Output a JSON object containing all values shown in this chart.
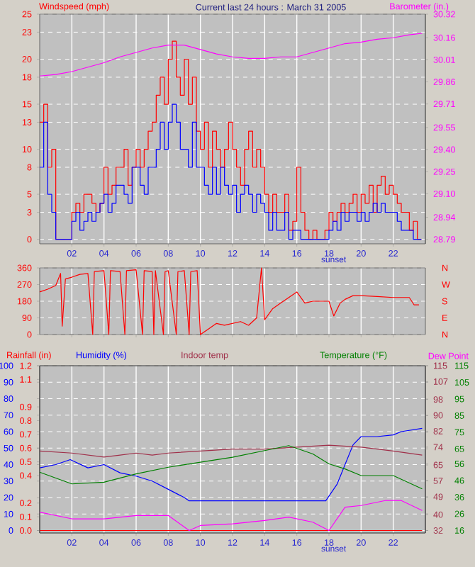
{
  "chart_data": [
    {
      "type": "line",
      "title": "Current last 24 hours : March 31 2005",
      "ylabel": "Windspeed (mph)",
      "y2label": "Barometer (in.)",
      "grid": true,
      "xlim": [
        0,
        24
      ],
      "xticks": [
        {
          "value": 2,
          "label": "02"
        },
        {
          "value": 4,
          "label": "04"
        },
        {
          "value": 6,
          "label": "06"
        },
        {
          "value": 8,
          "label": "08"
        },
        {
          "value": 10,
          "label": "10"
        },
        {
          "value": 12,
          "label": "12"
        },
        {
          "value": 14,
          "label": "14"
        },
        {
          "value": 16,
          "label": "16"
        },
        {
          "value": 18,
          "label": "18"
        },
        {
          "value": 20,
          "label": "20"
        },
        {
          "value": 22,
          "label": "22"
        }
      ],
      "ylim": [
        -0.5,
        25
      ],
      "yticks": [
        0,
        3,
        5,
        8,
        10,
        13,
        15,
        18,
        20,
        23,
        25
      ],
      "y2lim": [
        28.76,
        30.32
      ],
      "y2ticks": [
        28.79,
        28.94,
        {
          "value": 29.1,
          "label": "29.10"
        },
        29.25,
        {
          "value": 29.4,
          "label": "29.40"
        },
        29.55,
        29.71,
        29.86,
        30.01,
        30.16,
        30.32
      ],
      "x": [
        0,
        0.25,
        0.5,
        0.75,
        1,
        1.25,
        1.5,
        1.75,
        2,
        2.25,
        2.5,
        2.75,
        3,
        3.25,
        3.5,
        3.75,
        4,
        4.25,
        4.5,
        4.75,
        5,
        5.25,
        5.5,
        5.75,
        6,
        6.25,
        6.5,
        6.75,
        7,
        7.25,
        7.5,
        7.75,
        8,
        8.25,
        8.5,
        8.75,
        9,
        9.25,
        9.5,
        9.75,
        10,
        10.25,
        10.5,
        10.75,
        11,
        11.25,
        11.5,
        11.75,
        12,
        12.25,
        12.5,
        12.75,
        13,
        13.25,
        13.5,
        13.75,
        14,
        14.25,
        14.5,
        14.75,
        15,
        15.25,
        15.5,
        15.75,
        16,
        16.25,
        16.5,
        16.75,
        17,
        17.25,
        17.5,
        17.75,
        18,
        18.25,
        18.5,
        18.75,
        19,
        19.25,
        19.5,
        19.75,
        20,
        20.25,
        20.5,
        20.75,
        21,
        21.25,
        21.5,
        21.75,
        22,
        22.25,
        22.5,
        22.75,
        23,
        23.25,
        23.5,
        23.75
      ],
      "series": [
        {
          "type": "step",
          "color": "#ff0000",
          "values": [
            13,
            15,
            8,
            10,
            0,
            0,
            0,
            0,
            3,
            4,
            3,
            5,
            5,
            4,
            3,
            4,
            8,
            5,
            6,
            8,
            8,
            10,
            6,
            8,
            10,
            8,
            10,
            12,
            13,
            16,
            18,
            15,
            20,
            22,
            18,
            16,
            20,
            15,
            18,
            12,
            10,
            13,
            8,
            12,
            10,
            8,
            10,
            13,
            10,
            8,
            6,
            10,
            12,
            8,
            10,
            8,
            5,
            3,
            5,
            3,
            3,
            5,
            1,
            2,
            8,
            3,
            1,
            0,
            1,
            0,
            0,
            1,
            3,
            2,
            3,
            4,
            3,
            4,
            5,
            3,
            5,
            4,
            6,
            3,
            6,
            7,
            5,
            6,
            5,
            4,
            3,
            3,
            1,
            2,
            0,
            0
          ]
        },
        {
          "type": "step",
          "color": "#0000ff",
          "values": [
            8,
            13,
            5,
            3,
            0,
            0,
            0,
            0,
            2,
            3,
            1,
            2,
            3,
            2,
            3,
            4,
            5,
            3,
            4,
            6,
            6,
            5,
            4,
            8,
            8,
            6,
            5,
            8,
            8,
            10,
            13,
            10,
            13,
            15,
            13,
            10,
            10,
            8,
            13,
            8,
            8,
            6,
            5,
            8,
            5,
            8,
            6,
            5,
            6,
            3,
            5,
            6,
            5,
            3,
            5,
            4,
            3,
            1,
            3,
            1,
            1,
            3,
            0,
            1,
            1,
            0,
            0,
            0,
            0,
            0,
            0,
            0,
            1,
            2,
            1,
            3,
            2,
            3,
            3,
            2,
            3,
            2,
            3,
            4,
            3,
            4,
            3,
            3,
            3,
            2,
            1,
            1,
            1,
            0,
            0,
            0
          ]
        },
        {
          "type": "line",
          "axis": "y2",
          "color": "#ff00ff",
          "x": [
            0,
            1,
            2,
            3,
            4,
            5,
            6,
            7,
            8,
            9,
            10,
            11,
            12,
            13,
            14,
            15,
            16,
            17,
            18,
            19,
            20,
            21,
            22,
            23,
            23.8
          ],
          "values": [
            29.9,
            29.91,
            29.93,
            29.96,
            29.99,
            30.03,
            30.06,
            30.09,
            30.11,
            30.11,
            30.08,
            30.05,
            30.03,
            30.02,
            30.02,
            30.03,
            30.03,
            30.06,
            30.09,
            30.12,
            30.13,
            30.15,
            30.16,
            30.18,
            30.19
          ]
        }
      ],
      "annotations": [
        "sunset"
      ]
    },
    {
      "type": "line",
      "grid": true,
      "tick_labels": "y",
      "xlim": [
        0,
        24
      ],
      "xticks": [
        {
          "value": 2,
          "label": null
        },
        {
          "value": 4,
          "label": null
        },
        {
          "value": 6,
          "label": null
        },
        {
          "value": 8,
          "label": null
        },
        {
          "value": 10,
          "label": null
        },
        {
          "value": 12,
          "label": null
        },
        {
          "value": 14,
          "label": null
        },
        {
          "value": 16,
          "label": null
        },
        {
          "value": 18,
          "label": null
        },
        {
          "value": 20,
          "label": null
        },
        {
          "value": 22,
          "label": null
        }
      ],
      "ylim": [
        0,
        360
      ],
      "yticks": [
        0,
        90,
        180,
        270,
        360
      ],
      "y2_categories": [
        "N",
        "W",
        "S",
        "E",
        "N"
      ],
      "series": [
        {
          "color": "#ff0000",
          "x": [
            0,
            0.5,
            1,
            1.3,
            1.4,
            1.6,
            2,
            2.5,
            3,
            3.3,
            3.4,
            4,
            4.3,
            4.4,
            5,
            5.3,
            5.4,
            6,
            6.4,
            6.5,
            7,
            7.1,
            7.2,
            7.7,
            7.8,
            8,
            8.5,
            8.6,
            9,
            9.3,
            9.4,
            9.8,
            10,
            10.5,
            11,
            11.5,
            12,
            12.5,
            13,
            13.5,
            13.8,
            14,
            14.5,
            15,
            15.5,
            16,
            16.5,
            17,
            18,
            18.3,
            18.7,
            19,
            19.5,
            20,
            21,
            22,
            23,
            23.3,
            23.6
          ],
          "values": [
            230,
            245,
            265,
            330,
            45,
            300,
            310,
            325,
            330,
            0,
            340,
            345,
            0,
            345,
            340,
            0,
            345,
            350,
            0,
            345,
            340,
            0,
            345,
            0,
            340,
            345,
            0,
            340,
            345,
            0,
            340,
            345,
            0,
            30,
            60,
            50,
            60,
            70,
            50,
            90,
            360,
            80,
            140,
            170,
            200,
            230,
            170,
            180,
            180,
            100,
            170,
            190,
            210,
            210,
            205,
            200,
            200,
            160,
            160
          ]
        }
      ]
    },
    {
      "type": "line",
      "grid": true,
      "xlim": [
        0,
        24
      ],
      "xticks": [
        {
          "value": 2,
          "label": "02"
        },
        {
          "value": 4,
          "label": "04"
        },
        {
          "value": 6,
          "label": "06"
        },
        {
          "value": 8,
          "label": "08"
        },
        {
          "value": 10,
          "label": "10"
        },
        {
          "value": 12,
          "label": "12"
        },
        {
          "value": 14,
          "label": "14"
        },
        {
          "value": 16,
          "label": "16"
        },
        {
          "value": 18,
          "label": "18"
        },
        {
          "value": 20,
          "label": "20"
        },
        {
          "value": 22,
          "label": "22"
        }
      ],
      "ylim": [
        -1.5,
        100
      ],
      "yticks": [
        0,
        10,
        20,
        30,
        40,
        50,
        60,
        70,
        80,
        90,
        100
      ],
      "y2lim": [
        -0.018,
        1.2
      ],
      "y2ticks": [
        {
          "value": 0,
          "label": "0.0"
        },
        0.1,
        0.2,
        0.4,
        0.5,
        0.6,
        0.7,
        0.8,
        0.9,
        1.1,
        1.2
      ],
      "series": [
        {
          "name": "Rainfall (in)",
          "axis": "y2",
          "color": "#ff0000",
          "x": [
            0,
            23.8
          ],
          "values": [
            0,
            0
          ]
        },
        {
          "name": "Humidity (%)",
          "color": "#0000ff",
          "x": [
            0,
            1,
            1.9,
            3,
            4,
            5,
            6,
            7,
            8,
            9,
            9.3,
            17.8,
            18.5,
            19,
            19.5,
            20,
            21,
            22,
            22.5,
            23.8
          ],
          "values": [
            38,
            40,
            43,
            38,
            40,
            35,
            33,
            30,
            25,
            20,
            18,
            18,
            28,
            40,
            52,
            57,
            57,
            58,
            60,
            62
          ]
        }
      ],
      "annotations": [
        "sunset"
      ]
    },
    {
      "type": "line",
      "tick_labels": "y",
      "xlim": [
        0,
        24
      ],
      "ylim": [
        30.75,
        115
      ],
      "yticks": [
        32,
        40,
        49,
        57,
        65,
        74,
        82,
        90,
        98,
        107,
        115
      ],
      "y2lim": [
        14.5,
        115
      ],
      "y2ticks": [
        16,
        26,
        36,
        46,
        56,
        65,
        75,
        85,
        95,
        105,
        115
      ],
      "series": [
        {
          "name": "Indoor temp",
          "color": "#a0304a",
          "x": [
            0,
            2,
            4,
            5,
            6,
            7,
            8,
            10,
            12,
            14,
            16,
            18,
            20,
            22,
            23.8
          ],
          "values": [
            72,
            71,
            69,
            70,
            71,
            70,
            71,
            72,
            73,
            73,
            74,
            75,
            74,
            72,
            70
          ]
        },
        {
          "name": "Temperature (°F)",
          "axis": "y2",
          "color": "#008000",
          "x": [
            0,
            2,
            4,
            6,
            8,
            10,
            12,
            14,
            15.5,
            17,
            18,
            19,
            20,
            21,
            22,
            23.8
          ],
          "values": [
            51,
            44,
            45,
            50,
            54,
            57,
            60,
            64,
            67,
            62,
            56,
            53,
            49,
            49,
            49,
            41
          ]
        },
        {
          "name": "Dew Point",
          "axis": "y2",
          "color": "#ff00ff",
          "x": [
            0,
            2,
            4,
            6,
            8,
            9.3,
            10,
            12,
            14,
            15.5,
            17,
            18,
            19,
            20,
            21.5,
            22.5,
            23.8
          ],
          "values": [
            27,
            23,
            23,
            25,
            25,
            16,
            19,
            20,
            22,
            24,
            21,
            16,
            30,
            31,
            34,
            34,
            28
          ]
        }
      ]
    }
  ]
}
